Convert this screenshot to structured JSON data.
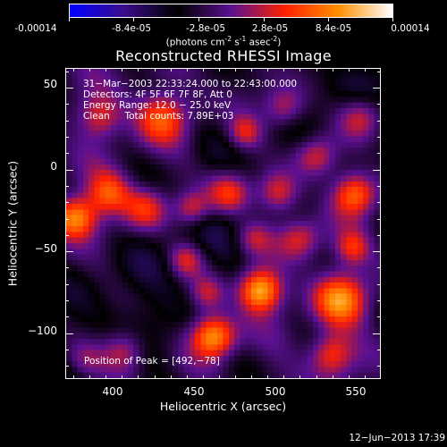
{
  "colorbar": {
    "ticks": [
      "-0.00014",
      "-8.4e-05",
      "-2.8e-05",
      "2.8e-05",
      "8.4e-05",
      "0.00014"
    ],
    "units_text": "(photons cm",
    "units_exp1": "-2",
    "units_mid1": " s",
    "units_exp2": "-1",
    "units_mid2": " asec",
    "units_exp3": "-2",
    "units_close": ")"
  },
  "chart_data": {
    "type": "heatmap",
    "title": "Reconstructed RHESSI Image",
    "xlabel": "Heliocentric X (arcsec)",
    "ylabel": "Heliocentric Y (arcsec)",
    "xlim": [
      370,
      565
    ],
    "ylim": [
      -128,
      62
    ],
    "xticks": [
      "400",
      "450",
      "500",
      "550"
    ],
    "xtick_values": [
      400,
      450,
      500,
      550
    ],
    "yticks": [
      "50",
      "0",
      "−50",
      "−100"
    ],
    "ytick_values": [
      50,
      0,
      -50,
      -100
    ],
    "colorbar_range": [
      -0.00014,
      0.00014
    ],
    "colormap": [
      "#0000ff",
      "#3b0d8c",
      "#000000",
      "#5a1090",
      "#ff2000",
      "#ff9000",
      "#ffffff"
    ],
    "peak_position": [
      492,
      -78
    ]
  },
  "annotations": {
    "line1": "31−Mar−2003 22:33:24.000 to 22:43:00.000",
    "line2": "Detectors: 4F 5F 6F 7F 8F, Att 0",
    "line3": "Energy Range: 12.0 − 25.0 keV",
    "line4": "Clean     Total counts: 7.89E+03",
    "peak": "Position of Peak = [492,−78]"
  },
  "footer": {
    "date": "12−Jun−2013 17:39"
  }
}
